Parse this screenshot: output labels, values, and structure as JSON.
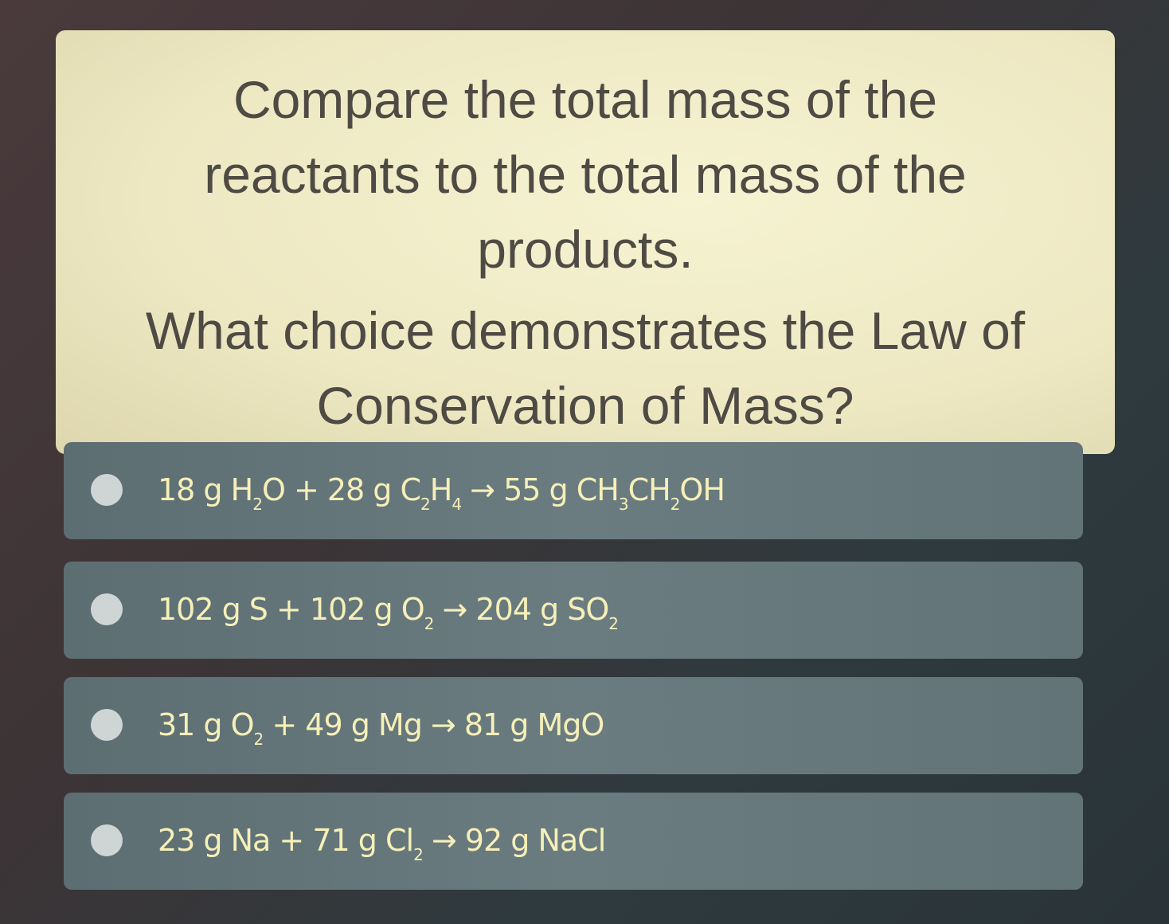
{
  "question": {
    "prompt": "Compare the total mass of the reactants to the total mass of the products.",
    "question": "What choice demonstrates the Law of Conservation of Mass?"
  },
  "colors": {
    "card": "#f3efcb",
    "option": "#667a7e",
    "formula_text": "#f6efb8",
    "radio": "#cfd5d4"
  },
  "options": [
    {
      "parts": [
        {
          "t": "18 g H"
        },
        {
          "s": "2"
        },
        {
          "t": "O + 28 g C"
        },
        {
          "s": "2"
        },
        {
          "t": "H"
        },
        {
          "s": "4"
        },
        {
          "t": " → 55 g CH"
        },
        {
          "s": "3"
        },
        {
          "t": "CH"
        },
        {
          "s": "2"
        },
        {
          "t": "OH"
        }
      ]
    },
    {
      "parts": [
        {
          "t": "102 g S + 102 g O"
        },
        {
          "s": "2"
        },
        {
          "t": " → 204 g SO"
        },
        {
          "s": "2"
        }
      ]
    },
    {
      "parts": [
        {
          "t": "31 g O"
        },
        {
          "s": "2"
        },
        {
          "t": " + 49 g Mg → 81 g MgO"
        }
      ]
    },
    {
      "parts": [
        {
          "t": "23 g Na + 71 g Cl"
        },
        {
          "s": "2"
        },
        {
          "t": " → 92 g NaCl"
        }
      ]
    }
  ]
}
